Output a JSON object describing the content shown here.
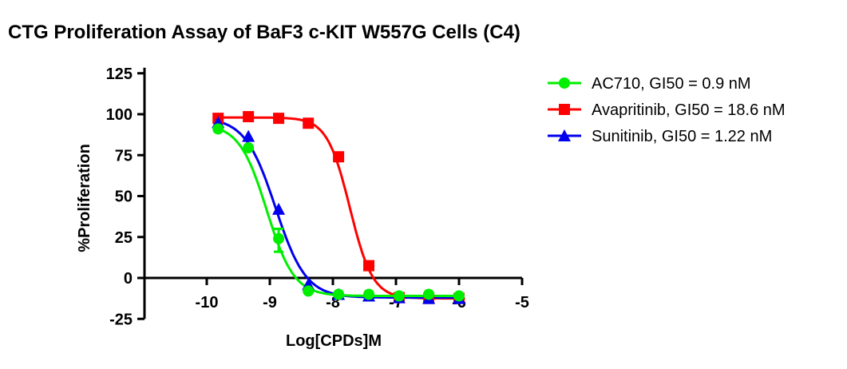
{
  "chart_data": {
    "type": "scatter",
    "title": "CTG Proliferation Assay of BaF3 c-KIT W557G Cells (C4)",
    "xlabel": "Log[CPDs]M",
    "ylabel": "%Proliferation",
    "xlim": [
      -11,
      -5
    ],
    "ylim": [
      -25,
      125
    ],
    "xticks": [
      -10,
      -9,
      -8,
      -7,
      -6,
      -5
    ],
    "yticks": [
      125,
      100,
      75,
      50,
      25,
      0,
      -25
    ],
    "grid": false,
    "legend_position": "top-right",
    "x": [
      -9.82,
      -9.34,
      -8.86,
      -8.39,
      -7.91,
      -7.43,
      -6.95,
      -6.48,
      -6.0
    ],
    "series": [
      {
        "name": "AC710, GI50 = 0.9 nM",
        "color": "#00ee00",
        "marker": "circle",
        "values": [
          91,
          79.5,
          24,
          -8,
          -10,
          -10,
          -11,
          -10,
          -11
        ],
        "fit": {
          "top": 94,
          "bottom": -11,
          "logGI50": -9.05,
          "hill": 2.0
        }
      },
      {
        "name": "Avapritinib, GI50 = 18.6 nM",
        "color": "#ff0000",
        "marker": "square",
        "values": [
          97.5,
          98.5,
          97.5,
          94.5,
          74,
          7.5,
          -12,
          -12.5,
          -12.5
        ],
        "fit": {
          "top": 98,
          "bottom": -12.5,
          "logGI50": -7.73,
          "hill": 2.4
        }
      },
      {
        "name": "Sunitinib, GI50 = 1.22 nM",
        "color": "#0000ee",
        "marker": "triangle",
        "values": [
          95,
          86.5,
          42,
          -4,
          -10,
          -11,
          -12,
          -12.5,
          -12.5
        ],
        "fit": {
          "top": 98,
          "bottom": -12,
          "logGI50": -8.91,
          "hill": 1.8
        }
      }
    ]
  }
}
